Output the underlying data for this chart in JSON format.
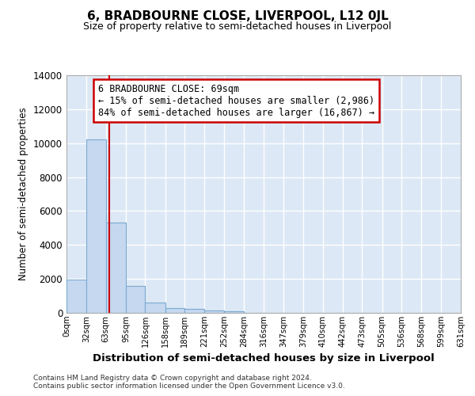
{
  "title": "6, BRADBOURNE CLOSE, LIVERPOOL, L12 0JL",
  "subtitle": "Size of property relative to semi-detached houses in Liverpool",
  "xlabel": "Distribution of semi-detached houses by size in Liverpool",
  "ylabel": "Number of semi-detached properties",
  "property_size": 69,
  "property_label": "6 BRADBOURNE CLOSE: 69sqm",
  "pct_smaller": 15,
  "pct_larger": 84,
  "n_smaller": 2986,
  "n_larger": 16867,
  "bin_edges": [
    0,
    32,
    63,
    95,
    126,
    158,
    189,
    221,
    252,
    284,
    316,
    347,
    379,
    410,
    442,
    473,
    505,
    536,
    568,
    599,
    631
  ],
  "bin_labels": [
    "0sqm",
    "32sqm",
    "63sqm",
    "95sqm",
    "126sqm",
    "158sqm",
    "189sqm",
    "221sqm",
    "252sqm",
    "284sqm",
    "316sqm",
    "347sqm",
    "379sqm",
    "410sqm",
    "442sqm",
    "473sqm",
    "505sqm",
    "536sqm",
    "568sqm",
    "599sqm",
    "631sqm"
  ],
  "bar_heights": [
    1950,
    10200,
    5300,
    1580,
    620,
    290,
    220,
    145,
    100,
    0,
    0,
    0,
    0,
    0,
    0,
    0,
    0,
    0,
    0,
    0
  ],
  "bar_color": "#c5d8f0",
  "bar_edge_color": "#7aaad0",
  "vline_x": 69,
  "vline_color": "#cc0000",
  "annotation_box_color": "#cc0000",
  "ylim": [
    0,
    14000
  ],
  "yticks": [
    0,
    2000,
    4000,
    6000,
    8000,
    10000,
    12000,
    14000
  ],
  "background_color": "#dce8f5",
  "grid_color": "#ffffff",
  "footer_line1": "Contains HM Land Registry data © Crown copyright and database right 2024.",
  "footer_line2": "Contains public sector information licensed under the Open Government Licence v3.0."
}
